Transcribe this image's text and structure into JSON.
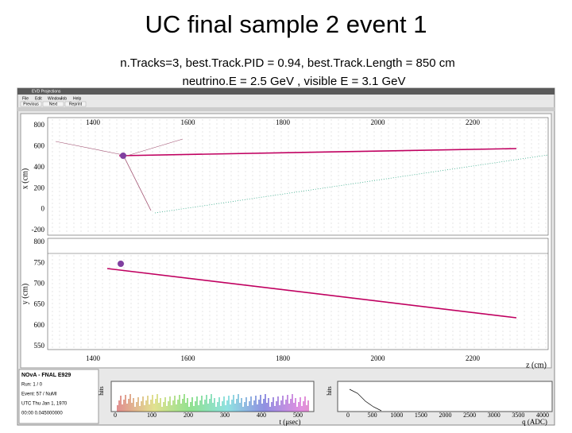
{
  "slide": {
    "title": "UC final sample 2 event 1",
    "subtitle_lines": [
      "n.Tracks=3, best.Track.PID = 0.94, best.Track.Length = 850 cm",
      "neutrino.E = 2.5 GeV , visible E = 3.1 GeV"
    ]
  },
  "window": {
    "title": "EVD Projections",
    "menu": [
      "File",
      "Edit",
      "Window",
      "Job",
      "Help"
    ],
    "buttons": [
      "Previous",
      "Next",
      "Reprint"
    ],
    "top_panel": {
      "y_label": "x (cm)",
      "y_ticks": [
        "800",
        "600",
        "400",
        "200",
        "0",
        "-200"
      ],
      "x_ticks": [
        "1400",
        "1600",
        "1800",
        "2000",
        "2200"
      ]
    },
    "bottom_panel": {
      "y_label": "y (cm)",
      "y_ticks": [
        "800",
        "750",
        "700",
        "650",
        "600",
        "550"
      ],
      "x_ticks": [
        "1400",
        "1600",
        "1800",
        "2000",
        "2200"
      ],
      "x_label": "z (cm)"
    },
    "info": [
      "NOvA - FNAL E929",
      "Run: 1 / 0",
      "Event: 57 / NuMI",
      "UTC Thu Jan 1, 1970",
      "00:00 0.045000000"
    ],
    "time_hist": {
      "y_label": "hits",
      "x_label": "t (μsec)",
      "x_ticks": [
        "0",
        "100",
        "200",
        "300",
        "400",
        "500"
      ]
    },
    "charge_hist": {
      "y_label": "hits",
      "x_label": "q (ADC)",
      "x_ticks": [
        "0",
        "500",
        "1000",
        "1500",
        "2000",
        "2500",
        "3000",
        "3500",
        "4000"
      ]
    }
  }
}
